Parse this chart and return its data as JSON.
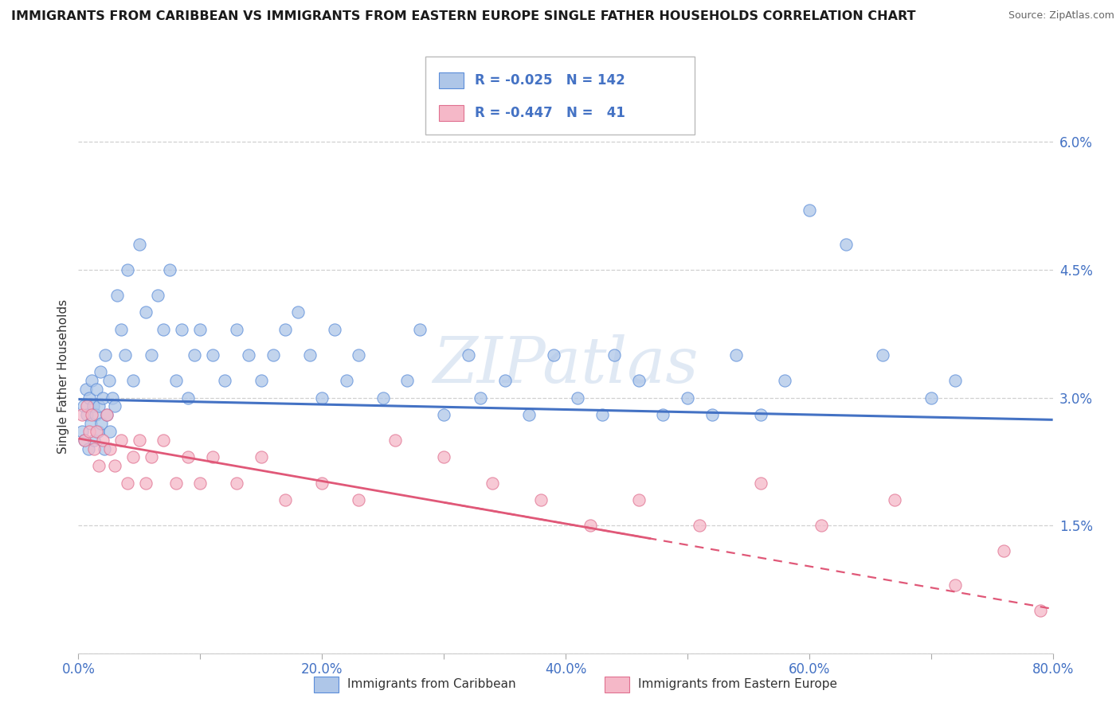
{
  "title": "IMMIGRANTS FROM CARIBBEAN VS IMMIGRANTS FROM EASTERN EUROPE SINGLE FATHER HOUSEHOLDS CORRELATION CHART",
  "source": "Source: ZipAtlas.com",
  "ylabel": "Single Father Households",
  "xlim": [
    0,
    80
  ],
  "ylim": [
    0,
    6.5
  ],
  "yticks": [
    0,
    1.5,
    3.0,
    4.5,
    6.0
  ],
  "ytick_labels": [
    "",
    "1.5%",
    "3.0%",
    "4.5%",
    "6.0%"
  ],
  "xtick_labels": [
    "0.0%",
    "",
    "20.0%",
    "",
    "40.0%",
    "",
    "60.0%",
    "",
    "80.0%"
  ],
  "xticks": [
    0,
    10,
    20,
    30,
    40,
    50,
    60,
    70,
    80
  ],
  "color_caribbean": "#aec6e8",
  "color_caribbean_edge": "#5b8dd9",
  "color_caribbean_line": "#4472c4",
  "color_eastern": "#f5b8c8",
  "color_eastern_edge": "#e07090",
  "color_eastern_line": "#e05878",
  "watermark": "ZIPatlas",
  "background_color": "#ffffff",
  "grid_color": "#d0d0d0",
  "carib_R": -0.025,
  "carib_N": 142,
  "carib_intercept": 2.98,
  "carib_slope": -0.003,
  "east_R": -0.447,
  "east_N": 41,
  "east_intercept": 2.52,
  "east_slope": -0.025,
  "caribbean_x": [
    0.3,
    0.4,
    0.5,
    0.6,
    0.7,
    0.8,
    0.9,
    1.0,
    1.1,
    1.2,
    1.3,
    1.4,
    1.5,
    1.6,
    1.7,
    1.8,
    1.9,
    2.0,
    2.1,
    2.2,
    2.3,
    2.5,
    2.6,
    2.8,
    3.0,
    3.2,
    3.5,
    3.8,
    4.0,
    4.5,
    5.0,
    5.5,
    6.0,
    6.5,
    7.0,
    7.5,
    8.0,
    8.5,
    9.0,
    9.5,
    10.0,
    11.0,
    12.0,
    13.0,
    14.0,
    15.0,
    16.0,
    17.0,
    18.0,
    19.0,
    20.0,
    21.0,
    22.0,
    23.0,
    25.0,
    27.0,
    28.0,
    30.0,
    32.0,
    33.0,
    35.0,
    37.0,
    39.0,
    41.0,
    43.0,
    44.0,
    46.0,
    48.0,
    50.0,
    52.0,
    54.0,
    56.0,
    58.0,
    60.0,
    63.0,
    66.0,
    70.0,
    72.0
  ],
  "caribbean_y": [
    2.6,
    2.9,
    2.5,
    3.1,
    2.8,
    2.4,
    3.0,
    2.7,
    3.2,
    2.9,
    2.5,
    2.8,
    3.1,
    2.6,
    2.9,
    3.3,
    2.7,
    3.0,
    2.4,
    3.5,
    2.8,
    3.2,
    2.6,
    3.0,
    2.9,
    4.2,
    3.8,
    3.5,
    4.5,
    3.2,
    4.8,
    4.0,
    3.5,
    4.2,
    3.8,
    4.5,
    3.2,
    3.8,
    3.0,
    3.5,
    3.8,
    3.5,
    3.2,
    3.8,
    3.5,
    3.2,
    3.5,
    3.8,
    4.0,
    3.5,
    3.0,
    3.8,
    3.2,
    3.5,
    3.0,
    3.2,
    3.8,
    2.8,
    3.5,
    3.0,
    3.2,
    2.8,
    3.5,
    3.0,
    2.8,
    3.5,
    3.2,
    2.8,
    3.0,
    2.8,
    3.5,
    2.8,
    3.2,
    5.2,
    4.8,
    3.5,
    3.0,
    3.2
  ],
  "eastern_x": [
    0.3,
    0.5,
    0.7,
    0.9,
    1.1,
    1.3,
    1.5,
    1.7,
    2.0,
    2.3,
    2.6,
    3.0,
    3.5,
    4.0,
    4.5,
    5.0,
    5.5,
    6.0,
    7.0,
    8.0,
    9.0,
    10.0,
    11.0,
    13.0,
    15.0,
    17.0,
    20.0,
    23.0,
    26.0,
    30.0,
    34.0,
    38.0,
    42.0,
    46.0,
    51.0,
    56.0,
    61.0,
    67.0,
    72.0,
    76.0,
    79.0
  ],
  "eastern_y": [
    2.8,
    2.5,
    2.9,
    2.6,
    2.8,
    2.4,
    2.6,
    2.2,
    2.5,
    2.8,
    2.4,
    2.2,
    2.5,
    2.0,
    2.3,
    2.5,
    2.0,
    2.3,
    2.5,
    2.0,
    2.3,
    2.0,
    2.3,
    2.0,
    2.3,
    1.8,
    2.0,
    1.8,
    2.5,
    2.3,
    2.0,
    1.8,
    1.5,
    1.8,
    1.5,
    2.0,
    1.5,
    1.8,
    0.8,
    1.2,
    0.5
  ]
}
